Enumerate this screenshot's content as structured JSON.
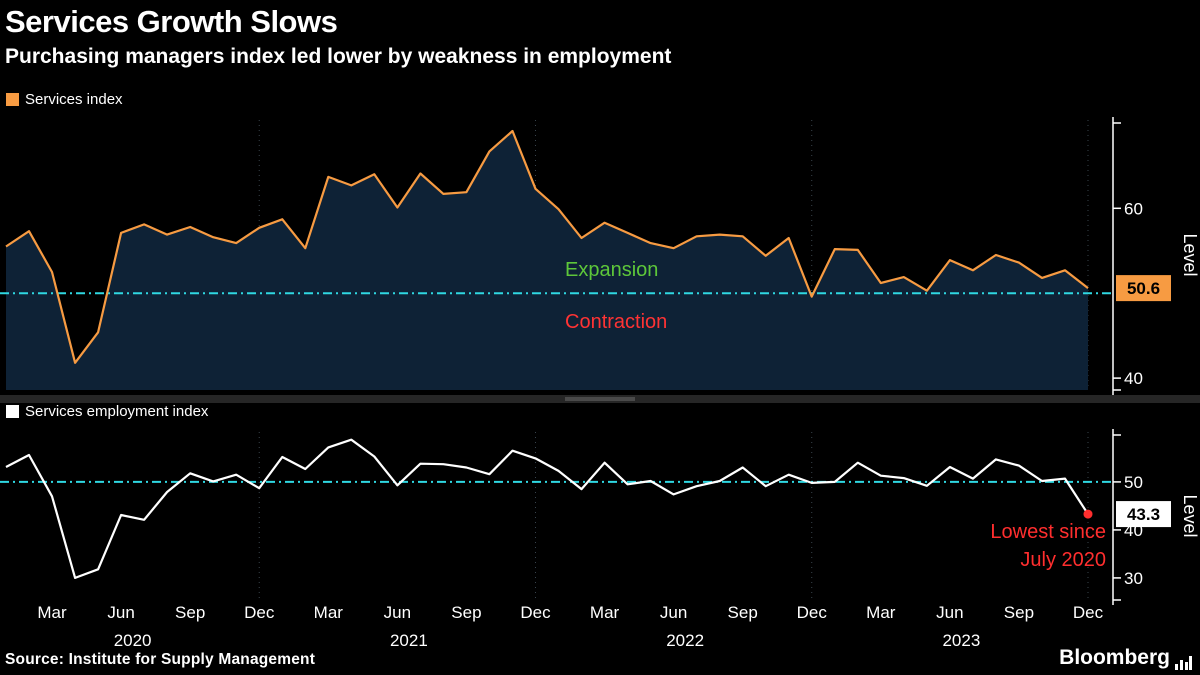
{
  "header": {
    "title": "Services Growth Slows",
    "subtitle": "Purchasing managers index led lower by weakness in employment"
  },
  "colors": {
    "background": "#000000",
    "accent_orange": "#f79b42",
    "area_fill": "#0e2236",
    "threshold_cyan": "#2fd8e2",
    "expansion_green": "#5dc73a",
    "contraction_red": "#ff3334",
    "annotation_red": "#ff2e2e",
    "line_white": "#ffffff",
    "grid": "#39444d",
    "axis": "#ffffff",
    "badge_text": "#000000"
  },
  "chart_data": [
    {
      "type": "area",
      "legend": "Services index",
      "ylabel": "Level",
      "ylim": [
        38.6,
        70.4
      ],
      "yticks": [
        40,
        60
      ],
      "threshold": 50,
      "threshold_labels": {
        "above": "Expansion",
        "below": "Contraction"
      },
      "last_value_label": "50.6",
      "x_range": "Jan 2020 - Dec 2023, monthly",
      "values": [
        55.5,
        57.3,
        52.5,
        41.8,
        45.4,
        57.1,
        58.1,
        56.9,
        57.8,
        56.6,
        55.9,
        57.7,
        58.7,
        55.3,
        63.7,
        62.7,
        64.0,
        60.1,
        64.1,
        61.7,
        61.9,
        66.7,
        69.1,
        62.3,
        59.9,
        56.5,
        58.3,
        57.1,
        55.9,
        55.3,
        56.7,
        56.9,
        56.7,
        54.4,
        56.5,
        49.6,
        55.2,
        55.1,
        51.2,
        51.9,
        50.3,
        53.9,
        52.7,
        54.5,
        53.6,
        51.8,
        52.7,
        50.6
      ]
    },
    {
      "type": "line",
      "legend": "Services employment index",
      "ylabel": "Level",
      "ylim": [
        25.4,
        60.4
      ],
      "yticks": [
        30,
        40,
        50
      ],
      "threshold": 50,
      "last_value_label": "43.3",
      "annotation": {
        "lines": [
          "Lowest since",
          "July 2020"
        ]
      },
      "x_range": "Jan 2020 - Dec 2023, monthly",
      "values": [
        53.1,
        55.6,
        47.0,
        30.0,
        31.8,
        43.1,
        42.1,
        47.9,
        51.8,
        50.1,
        51.5,
        48.7,
        55.2,
        52.7,
        57.2,
        58.8,
        55.3,
        49.3,
        53.8,
        53.7,
        53.0,
        51.6,
        56.5,
        54.9,
        52.3,
        48.5,
        54.0,
        49.5,
        50.2,
        47.4,
        49.1,
        50.2,
        53.0,
        49.1,
        51.5,
        49.8,
        50.0,
        54.0,
        51.3,
        50.8,
        49.2,
        53.1,
        50.7,
        54.7,
        53.4,
        50.2,
        50.7,
        43.3
      ]
    }
  ],
  "xaxis": {
    "month_labels": [
      "Mar",
      "Jun",
      "Sep",
      "Dec"
    ],
    "year_labels": [
      "2020",
      "2021",
      "2022",
      "2023"
    ]
  },
  "footer": {
    "source": "Source: Institute for Supply Management",
    "brand": "Bloomberg"
  }
}
